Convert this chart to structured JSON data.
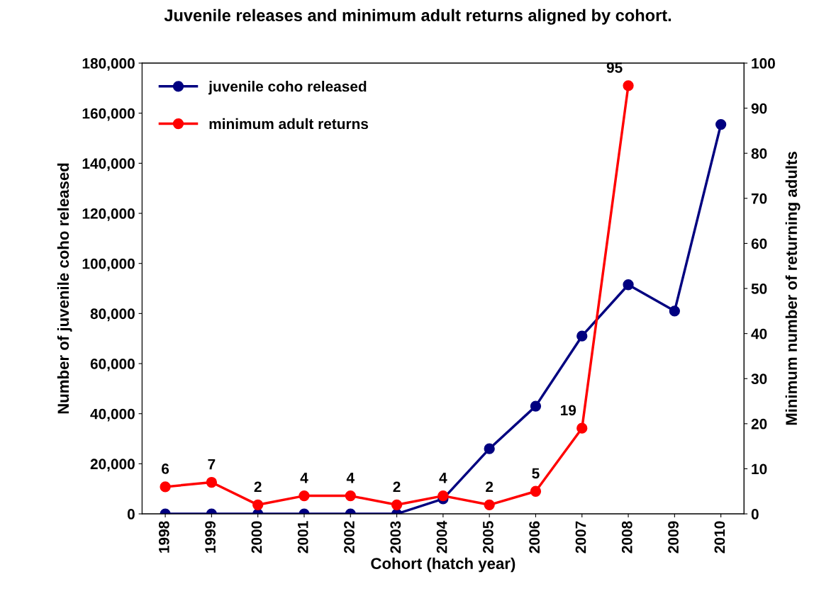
{
  "chart_data": {
    "type": "line",
    "title": "Juvenile releases and minimum adult returns aligned by cohort.",
    "xlabel": "Cohort (hatch year)",
    "ylabel": "Number of juvenile coho released",
    "y2label": "Minimum number of returning adults",
    "categories": [
      "1998",
      "1999",
      "2000",
      "2001",
      "2002",
      "2003",
      "2004",
      "2005",
      "2006",
      "2007",
      "2008",
      "2009",
      "2010"
    ],
    "series": [
      {
        "name": "juvenile coho released",
        "color": "#000080",
        "values": [
          0,
          0,
          0,
          0,
          0,
          0,
          6000,
          26000,
          43000,
          71000,
          91500,
          81000,
          155500
        ]
      },
      {
        "name": "minimum adult returns",
        "color": "#ff0000",
        "axis": "y2",
        "values": [
          6,
          7,
          2,
          4,
          4,
          2,
          4,
          2,
          5,
          19,
          95,
          null,
          null
        ],
        "value_labels": [
          "6",
          "7",
          "2",
          "4",
          "4",
          "2",
          "4",
          "2",
          "5",
          "19",
          "95",
          null,
          null
        ]
      }
    ],
    "ylim": [
      0,
      180000
    ],
    "yticks": [
      {
        "value": 0,
        "label": "0"
      },
      {
        "value": 20000,
        "label": "20,000"
      },
      {
        "value": 40000,
        "label": "40,000"
      },
      {
        "value": 60000,
        "label": "60,000"
      },
      {
        "value": 80000,
        "label": "80,000"
      },
      {
        "value": 100000,
        "label": "100,000"
      },
      {
        "value": 120000,
        "label": "120,000"
      },
      {
        "value": 140000,
        "label": "140,000"
      },
      {
        "value": 160000,
        "label": "160,000"
      },
      {
        "value": 180000,
        "label": "180,000"
      }
    ],
    "y2lim": [
      0,
      100
    ],
    "y2ticks": [
      0,
      10,
      20,
      30,
      40,
      50,
      60,
      70,
      80,
      90,
      100
    ],
    "grid": false,
    "legend": "top left",
    "marker": "circle",
    "line_style": "solid"
  }
}
